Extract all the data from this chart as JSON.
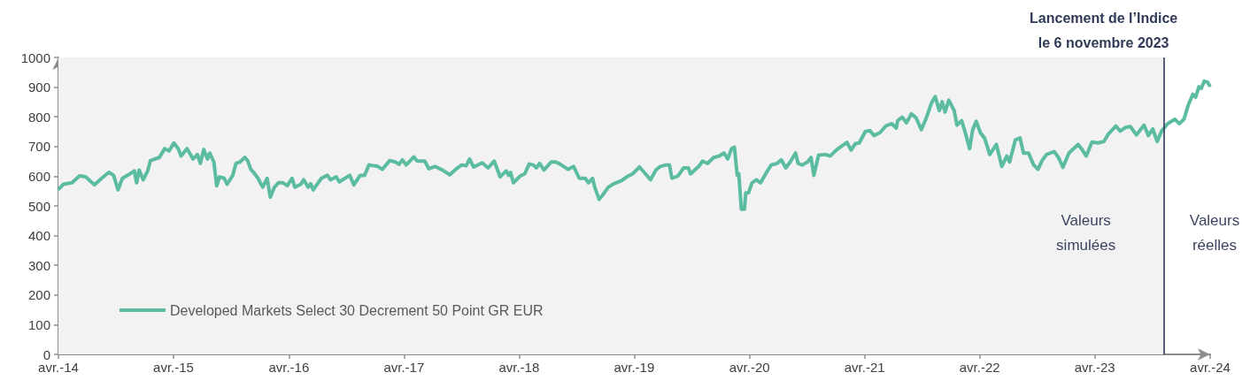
{
  "chart_data": {
    "type": "line",
    "x": [
      "2014-04-03",
      "2014-04-17",
      "2014-05-14",
      "2014-06-07",
      "2014-06-26",
      "2014-07-24",
      "2014-08-16",
      "2014-09-08",
      "2014-09-23",
      "2014-10-07",
      "2014-10-21",
      "2014-11-14",
      "2014-11-28",
      "2014-12-05",
      "2014-12-13",
      "2014-12-26",
      "2015-01-09",
      "2015-01-18",
      "2015-02-15",
      "2015-03-04",
      "2015-03-18",
      "2015-04-02",
      "2015-04-16",
      "2015-04-25",
      "2015-05-14",
      "2015-06-02",
      "2015-06-16",
      "2015-06-25",
      "2015-07-06",
      "2015-07-18",
      "2015-07-25",
      "2015-08-07",
      "2015-08-16",
      "2015-08-25",
      "2015-09-09",
      "2015-09-18",
      "2015-10-06",
      "2015-10-16",
      "2015-10-29",
      "2015-11-13",
      "2015-11-22",
      "2015-12-02",
      "2015-12-11",
      "2015-12-25",
      "2016-01-09",
      "2016-01-23",
      "2016-02-02",
      "2016-02-15",
      "2016-02-28",
      "2016-03-13",
      "2016-03-27",
      "2016-04-11",
      "2016-04-20",
      "2016-05-09",
      "2016-05-18",
      "2016-06-01",
      "2016-06-09",
      "2016-06-17",
      "2016-07-13",
      "2016-08-01",
      "2016-08-11",
      "2016-08-29",
      "2016-09-08",
      "2016-10-11",
      "2016-10-24",
      "2016-11-13",
      "2016-11-27",
      "2016-12-11",
      "2017-01-08",
      "2017-01-22",
      "2017-02-15",
      "2017-03-04",
      "2017-03-17",
      "2017-03-27",
      "2017-04-08",
      "2017-05-02",
      "2017-05-13",
      "2017-06-06",
      "2017-06-19",
      "2017-07-08",
      "2017-08-01",
      "2017-08-24",
      "2017-09-12",
      "2017-10-01",
      "2017-10-15",
      "2017-10-26",
      "2017-11-08",
      "2017-12-05",
      "2017-12-24",
      "2018-01-12",
      "2018-01-31",
      "2018-02-19",
      "2018-02-27",
      "2018-03-05",
      "2018-03-14",
      "2018-04-05",
      "2018-04-19",
      "2018-05-03",
      "2018-05-16",
      "2018-05-26",
      "2018-06-05",
      "2018-06-19",
      "2018-07-12",
      "2018-07-26",
      "2018-08-09",
      "2018-09-03",
      "2018-09-21",
      "2018-10-09",
      "2018-10-28",
      "2018-11-07",
      "2018-11-20",
      "2018-11-27",
      "2018-12-11",
      "2018-12-21",
      "2019-01-09",
      "2019-01-27",
      "2019-02-20",
      "2019-03-09",
      "2019-03-27",
      "2019-04-18",
      "2019-05-07",
      "2019-05-23",
      "2019-06-09",
      "2019-06-23",
      "2019-07-11",
      "2019-07-22",
      "2019-07-30",
      "2019-08-18",
      "2019-09-05",
      "2019-09-20",
      "2019-09-27",
      "2019-10-23",
      "2019-11-04",
      "2019-11-20",
      "2019-12-09",
      "2019-12-27",
      "2020-01-11",
      "2020-01-23",
      "2020-02-04",
      "2020-02-13",
      "2020-02-22",
      "2020-02-27",
      "2020-03-06",
      "2020-03-16",
      "2020-03-20",
      "2020-03-29",
      "2020-04-09",
      "2020-04-23",
      "2020-05-06",
      "2020-05-25",
      "2020-06-09",
      "2020-06-27",
      "2020-07-11",
      "2020-07-25",
      "2020-08-08",
      "2020-08-25",
      "2020-09-02",
      "2020-09-15",
      "2020-10-02",
      "2020-10-13",
      "2020-10-22",
      "2020-11-06",
      "2020-11-29",
      "2020-12-13",
      "2021-01-01",
      "2021-01-20",
      "2021-02-04",
      "2021-02-17",
      "2021-03-03",
      "2021-03-15",
      "2021-04-03",
      "2021-04-17",
      "2021-05-01",
      "2021-05-20",
      "2021-06-08",
      "2021-06-26",
      "2021-07-10",
      "2021-07-15",
      "2021-07-29",
      "2021-08-12",
      "2021-08-27",
      "2021-09-11",
      "2021-09-28",
      "2021-10-12",
      "2021-10-30",
      "2021-11-11",
      "2021-11-24",
      "2021-12-03",
      "2021-12-12",
      "2021-12-24",
      "2022-01-10",
      "2022-01-19",
      "2022-02-03",
      "2022-02-17",
      "2022-02-28",
      "2022-03-10",
      "2022-03-21",
      "2022-04-03",
      "2022-04-17",
      "2022-05-03",
      "2022-05-24",
      "2022-06-10",
      "2022-06-26",
      "2022-07-05",
      "2022-07-23",
      "2022-08-07",
      "2022-08-18",
      "2022-09-03",
      "2022-09-19",
      "2022-10-03",
      "2022-10-16",
      "2022-10-30",
      "2022-11-23",
      "2022-12-07",
      "2022-12-21",
      "2023-01-09",
      "2023-02-07",
      "2023-02-21",
      "2023-03-05",
      "2023-03-23",
      "2023-04-11",
      "2023-04-30",
      "2023-05-14",
      "2023-06-07",
      "2023-06-21",
      "2023-07-09",
      "2023-07-23",
      "2023-08-11",
      "2023-09-04",
      "2023-09-18",
      "2023-10-02",
      "2023-10-16",
      "2023-10-30",
      "2023-11-18",
      "2023-12-11",
      "2023-12-25",
      "2024-01-09",
      "2024-01-23",
      "2024-02-06",
      "2024-02-15",
      "2024-02-25",
      "2024-03-04",
      "2024-03-13",
      "2024-03-24",
      "2024-03-30"
    ],
    "series": [
      {
        "name": "Developed Markets Select 30 Decrement 50 Point GR EUR",
        "color": "#5bbca2",
        "values": [
          558,
          573,
          578,
          601,
          598,
          571,
          593,
          613,
          603,
          554,
          593,
          608,
          618,
          578,
          621,
          588,
          618,
          653,
          663,
          693,
          685,
          712,
          693,
          668,
          693,
          658,
          673,
          643,
          690,
          658,
          678,
          648,
          568,
          598,
          593,
          573,
          603,
          643,
          648,
          663,
          653,
          623,
          613,
          593,
          563,
          593,
          529,
          563,
          578,
          578,
          568,
          593,
          563,
          573,
          588,
          563,
          575,
          554,
          593,
          603,
          588,
          598,
          581,
          603,
          571,
          603,
          603,
          638,
          633,
          623,
          653,
          648,
          640,
          655,
          638,
          665,
          651,
          651,
          625,
          633,
          621,
          605,
          623,
          638,
          635,
          658,
          631,
          645,
          628,
          651,
          598,
          618,
          603,
          613,
          578,
          601,
          608,
          641,
          638,
          628,
          643,
          621,
          648,
          648,
          641,
          623,
          633,
          593,
          593,
          578,
          593,
          563,
          522,
          535,
          563,
          575,
          585,
          598,
          608,
          631,
          608,
          588,
          621,
          633,
          638,
          638,
          593,
          601,
          628,
          628,
          608,
          633,
          651,
          643,
          663,
          668,
          678,
          658,
          693,
          698,
          603,
          608,
          489,
          489,
          544,
          544,
          578,
          588,
          578,
          613,
          638,
          643,
          655,
          628,
          648,
          678,
          643,
          638,
          648,
          663,
          603,
          671,
          673,
          668,
          688,
          703,
          714,
          688,
          710,
          712,
          750,
          754,
          737,
          747,
          770,
          777,
          762,
          787,
          799,
          780,
          810,
          797,
          757,
          792,
          846,
          868,
          821,
          851,
          816,
          856,
          821,
          772,
          787,
          737,
          693,
          757,
          785,
          747,
          727,
          673,
          707,
          633,
          668,
          648,
          722,
          729,
          678,
          678,
          638,
          623,
          653,
          673,
          683,
          663,
          630,
          678,
          707,
          688,
          668,
          715,
          712,
          717,
          742,
          769,
          752,
          765,
          767,
          739,
          772,
          737,
          759,
          717,
          752,
          777,
          792,
          777,
          792,
          841,
          876,
          866,
          901,
          896,
          920,
          916,
          906
        ]
      }
    ],
    "xlim": [
      "2014-04",
      "2024-04"
    ],
    "xticks": [
      {
        "value": "2014-04",
        "label": "avr.-14"
      },
      {
        "value": "2015-04",
        "label": "avr.-15"
      },
      {
        "value": "2016-04",
        "label": "avr.-16"
      },
      {
        "value": "2017-04",
        "label": "avr.-17"
      },
      {
        "value": "2018-04",
        "label": "avr.-18"
      },
      {
        "value": "2019-04",
        "label": "avr.-19"
      },
      {
        "value": "2020-04",
        "label": "avr.-20"
      },
      {
        "value": "2021-04",
        "label": "avr.-21"
      },
      {
        "value": "2022-04",
        "label": "avr.-22"
      },
      {
        "value": "2023-04",
        "label": "avr.-23"
      },
      {
        "value": "2024-04",
        "label": "avr.-24"
      }
    ],
    "ylim": [
      0,
      1000
    ],
    "yticks": [
      0,
      100,
      200,
      300,
      400,
      500,
      600,
      700,
      800,
      900,
      1000
    ],
    "legend": "bottom left",
    "bands": [
      {
        "axis": "x",
        "from": "2014-04",
        "to": "2023-11-06",
        "label": "Valeurs simulées",
        "color": "#f2f2f2"
      }
    ],
    "ref_lines": [
      {
        "axis": "x",
        "value": "2023-11-06",
        "label": "Lancement de l’Indice le 6 novembre 2023",
        "color": "#2e3a56"
      }
    ],
    "annotations": [
      "Valeurs réelles"
    ]
  }
}
